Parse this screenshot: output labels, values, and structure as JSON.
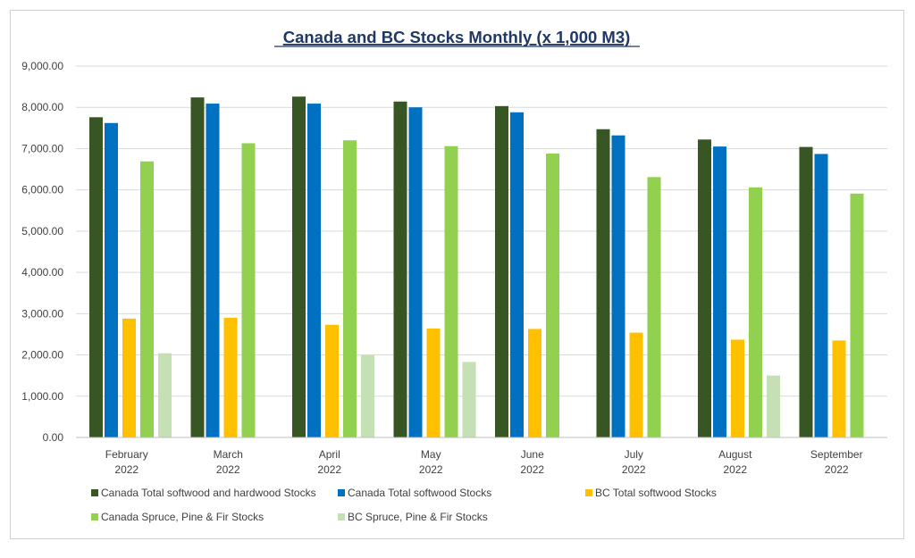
{
  "chart_data": {
    "type": "bar",
    "title": "Canada and BC Stocks  Monthly (x 1,000 M3)",
    "xlabel": "",
    "ylabel": "",
    "ylim": [
      0,
      9000
    ],
    "yticks": [
      0,
      1000,
      2000,
      3000,
      4000,
      5000,
      6000,
      7000,
      8000,
      9000
    ],
    "ytick_labels": [
      "0.00",
      "1,000.00",
      "2,000.00",
      "3,000.00",
      "4,000.00",
      "5,000.00",
      "6,000.00",
      "7,000.00",
      "8,000.00",
      "9,000.00"
    ],
    "grid": true,
    "legend_position": "bottom",
    "categories": [
      [
        "February",
        "2022"
      ],
      [
        "March",
        "2022"
      ],
      [
        "April",
        "2022"
      ],
      [
        "May",
        "2022"
      ],
      [
        "June",
        "2022"
      ],
      [
        "July",
        "2022"
      ],
      [
        "August",
        "2022"
      ],
      [
        "September",
        "2022"
      ]
    ],
    "series": [
      {
        "name": "Canada Total softwood and hardwood Stocks",
        "color": "#375623",
        "values": [
          7760,
          8240,
          8260,
          8140,
          8030,
          7470,
          7220,
          7040
        ]
      },
      {
        "name": "Canada Total softwood Stocks",
        "color": "#0070c0",
        "values": [
          7620,
          8090,
          8090,
          8000,
          7880,
          7320,
          7050,
          6870
        ]
      },
      {
        "name": "BC Total softwood Stocks",
        "color": "#ffc000",
        "values": [
          2880,
          2900,
          2730,
          2640,
          2630,
          2540,
          2370,
          2350
        ]
      },
      {
        "name": "Canada Spruce, Pine & Fir Stocks",
        "color": "#92d050",
        "values": [
          6690,
          7130,
          7200,
          7060,
          6880,
          6310,
          6060,
          5910
        ]
      },
      {
        "name": "BC Spruce, Pine & Fir Stocks",
        "color": "#c5e0b4",
        "values": [
          2040,
          null,
          1990,
          1830,
          null,
          null,
          1500,
          null
        ]
      }
    ]
  }
}
